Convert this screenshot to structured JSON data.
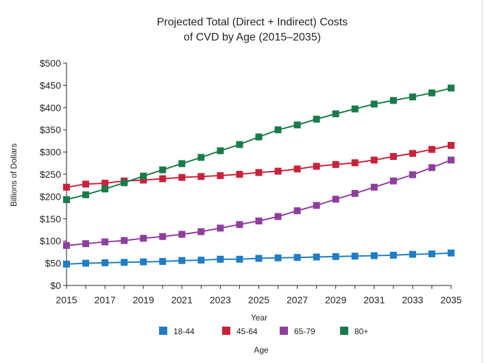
{
  "chart_data": {
    "type": "line",
    "title_lines": [
      "Projected Total (Direct + Indirect) Costs",
      "of CVD by Age (2015–2035)"
    ],
    "xlabel": "Year",
    "ylabel": "Billions of Dollars",
    "legend_title": "Age",
    "legend_position": "bottom",
    "grid": false,
    "ylim": [
      0,
      500
    ],
    "xlim": [
      2015,
      2035
    ],
    "y_ticks": [
      0,
      50,
      100,
      150,
      200,
      250,
      300,
      350,
      400,
      450,
      500
    ],
    "y_tick_labels": [
      "$0",
      "$50",
      "$100",
      "$150",
      "$200",
      "$250",
      "$300",
      "$350",
      "$400",
      "$450",
      "$500"
    ],
    "x_ticks": [
      2015,
      2017,
      2019,
      2021,
      2023,
      2025,
      2027,
      2029,
      2031,
      2033,
      2035
    ],
    "x_tick_labels": [
      "2015",
      "2017",
      "2019",
      "2021",
      "2023",
      "2025",
      "2027",
      "2029",
      "2031",
      "2033",
      "2035"
    ],
    "x": [
      2015,
      2016,
      2017,
      2018,
      2019,
      2020,
      2021,
      2022,
      2023,
      2024,
      2025,
      2026,
      2027,
      2028,
      2029,
      2030,
      2031,
      2032,
      2033,
      2034,
      2035
    ],
    "series": [
      {
        "name": "18-44",
        "color": "#1f7dc3",
        "values": [
          48,
          50,
          51,
          52,
          53,
          54,
          56,
          57,
          59,
          59,
          61,
          62,
          63,
          64,
          65,
          66,
          67,
          68,
          70,
          71,
          73
        ]
      },
      {
        "name": "45-64",
        "color": "#c8223a",
        "values": [
          221,
          228,
          230,
          235,
          237,
          240,
          243,
          245,
          247,
          250,
          254,
          257,
          262,
          268,
          272,
          276,
          282,
          290,
          297,
          306,
          315
        ]
      },
      {
        "name": "65-79",
        "color": "#8e3f9e",
        "values": [
          90,
          94,
          98,
          101,
          106,
          110,
          115,
          121,
          129,
          137,
          145,
          155,
          168,
          180,
          194,
          207,
          221,
          235,
          249,
          265,
          282
        ]
      },
      {
        "name": "80+",
        "color": "#1a7a4a",
        "values": [
          193,
          204,
          217,
          231,
          246,
          260,
          274,
          288,
          303,
          317,
          334,
          350,
          361,
          374,
          386,
          397,
          408,
          416,
          424,
          433,
          444
        ]
      }
    ]
  }
}
